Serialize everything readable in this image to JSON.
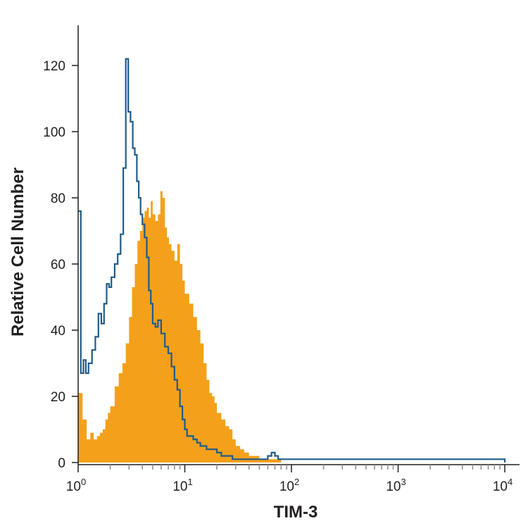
{
  "chart_data": {
    "type": "area",
    "title": "",
    "xlabel": "TIM-3",
    "ylabel": "Relative Cell Number",
    "xscale": "log",
    "xlim": [
      1,
      10000
    ],
    "ylim": [
      0,
      130
    ],
    "x_ticks": [
      {
        "base": "10",
        "exp": "0",
        "value": 1
      },
      {
        "base": "10",
        "exp": "1",
        "value": 10
      },
      {
        "base": "10",
        "exp": "2",
        "value": 100
      },
      {
        "base": "10",
        "exp": "3",
        "value": 1000
      },
      {
        "base": "10",
        "exp": "4",
        "value": 10000
      }
    ],
    "y_ticks": [
      0,
      20,
      40,
      60,
      80,
      100,
      120
    ],
    "grid": false,
    "colors": {
      "filled": "#f5a01a",
      "outline": "#1f5c8a",
      "axis": "#231f20"
    },
    "series": [
      {
        "style": "filled",
        "x": [
          1,
          1.1,
          1.2,
          1.3,
          1.4,
          1.5,
          1.6,
          1.7,
          1.8,
          1.9,
          2.0,
          2.2,
          2.4,
          2.6,
          2.8,
          3.0,
          3.2,
          3.4,
          3.6,
          3.8,
          4.0,
          4.2,
          4.4,
          4.6,
          4.8,
          5.0,
          5.3,
          5.6,
          5.9,
          6.2,
          6.5,
          6.8,
          7.1,
          7.5,
          8.0,
          8.5,
          9.0,
          9.5,
          10,
          11,
          12,
          13,
          14,
          15,
          16,
          17,
          18,
          19,
          20,
          22,
          24,
          26,
          28,
          30,
          33,
          36,
          40,
          45,
          50,
          55,
          60,
          70,
          80
        ],
        "values": [
          21,
          13,
          7,
          9,
          7,
          8,
          9,
          10,
          13,
          15,
          17,
          23,
          27,
          30,
          36,
          44,
          53,
          60,
          67,
          70,
          74,
          76,
          77,
          74,
          79,
          75,
          73,
          75,
          82,
          80,
          71,
          68,
          66,
          64,
          61,
          66,
          60,
          55,
          51,
          48,
          44,
          40,
          36,
          30,
          25,
          21,
          20,
          18,
          15,
          13,
          11,
          10,
          7,
          5,
          4,
          3,
          2,
          2,
          1,
          1,
          1,
          1,
          0
        ]
      },
      {
        "style": "outline",
        "x": [
          1,
          1.06,
          1.12,
          1.18,
          1.25,
          1.35,
          1.45,
          1.55,
          1.65,
          1.75,
          1.85,
          1.95,
          2.05,
          2.2,
          2.35,
          2.5,
          2.65,
          2.8,
          2.95,
          3.1,
          3.25,
          3.4,
          3.55,
          3.7,
          3.85,
          4.0,
          4.2,
          4.4,
          4.6,
          4.8,
          5.0,
          5.3,
          5.6,
          6.0,
          6.5,
          7.0,
          7.5,
          8.0,
          8.5,
          9.0,
          9.5,
          10,
          10.5,
          11,
          12,
          13,
          14,
          15,
          16,
          18,
          20,
          22,
          25,
          28,
          32,
          36,
          40,
          50,
          60,
          65,
          70,
          75,
          80,
          100,
          10000
        ],
        "values": [
          76,
          27,
          31,
          27,
          30,
          34,
          38,
          45,
          42,
          48,
          54,
          53,
          56,
          60,
          63,
          69,
          89,
          122,
          106,
          103,
          95,
          93,
          85,
          80,
          75,
          72,
          68,
          62,
          52,
          48,
          42,
          41,
          43,
          39,
          35,
          33,
          29,
          25,
          22,
          17,
          13,
          10,
          8,
          8,
          7,
          6,
          5,
          5,
          4,
          4,
          3,
          2,
          2,
          1,
          1,
          1,
          1,
          1,
          2,
          3,
          2,
          1,
          1,
          1,
          0
        ]
      }
    ]
  }
}
